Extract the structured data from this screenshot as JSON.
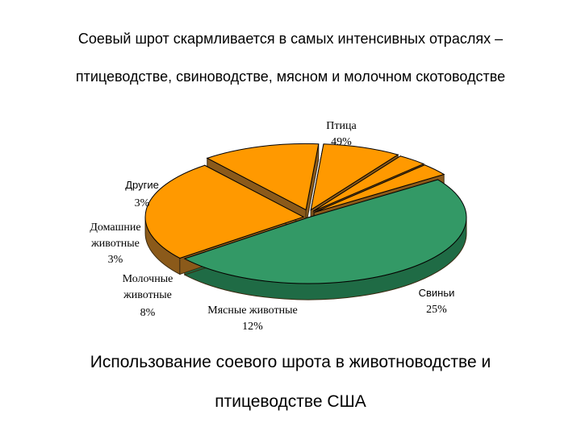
{
  "heading": {
    "line1": "Соевый шрот скармливается в самых интенсивных отраслях –",
    "line2": "птицеводстве, свиноводстве, мясном и молочном скотоводстве"
  },
  "caption": {
    "line1": "Использование соевого шрота в животноводстве и",
    "line2": "птицеводстве США"
  },
  "chart_data": {
    "type": "pie",
    "style": "3d-exploded",
    "slices": [
      {
        "label": [
          "Птица"
        ],
        "value": 49,
        "value_label": "49%",
        "color": "#339966",
        "side": "#1f6b45"
      },
      {
        "label": [
          "Свиньи"
        ],
        "value": 25,
        "value_label": "25%",
        "color": "#ff9900",
        "side": "#8b5a1a"
      },
      {
        "label": [
          "Мясные животные"
        ],
        "value": 12,
        "value_label": "12%",
        "color": "#ff9900",
        "side": "#8b5a1a"
      },
      {
        "label": [
          "Молочные",
          "животные"
        ],
        "value": 8,
        "value_label": "8%",
        "color": "#ff9900",
        "side": "#8b5a1a"
      },
      {
        "label": [
          "Домашние",
          "животные"
        ],
        "value": 3,
        "value_label": "3%",
        "color": "#ff9900",
        "side": "#8b5a1a"
      },
      {
        "label": [
          "Другие"
        ],
        "value": 3,
        "value_label": "3%",
        "color": "#ff9900",
        "side": "#8b5a1a"
      }
    ]
  }
}
